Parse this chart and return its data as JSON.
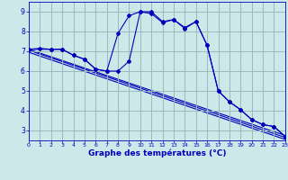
{
  "xlabel": "Graphe des températures (°C)",
  "bg_color": "#cce8e8",
  "line_color": "#0000bb",
  "grid_color": "#99bbbb",
  "xlim": [
    0,
    23
  ],
  "ylim": [
    2.5,
    9.5
  ],
  "yticks": [
    3,
    4,
    5,
    6,
    7,
    8,
    9
  ],
  "xticks": [
    0,
    1,
    2,
    3,
    4,
    5,
    6,
    7,
    8,
    9,
    10,
    11,
    12,
    13,
    14,
    15,
    16,
    17,
    18,
    19,
    20,
    21,
    22,
    23
  ],
  "line1_x": [
    0,
    1,
    2,
    3,
    4,
    5,
    6,
    7,
    8,
    9,
    10,
    11,
    12,
    13,
    14,
    15,
    16,
    17,
    18,
    19,
    20,
    21,
    22,
    23
  ],
  "line1_y": [
    7.1,
    7.15,
    7.1,
    7.1,
    6.8,
    6.6,
    6.1,
    6.0,
    7.9,
    8.8,
    9.0,
    8.9,
    8.45,
    8.6,
    8.2,
    8.5,
    7.3,
    5.0,
    4.45,
    4.05,
    3.55,
    3.3,
    3.2,
    2.7
  ],
  "line2_x": [
    0,
    2,
    3,
    4,
    5,
    6,
    7,
    8,
    9,
    10,
    11,
    12,
    13,
    14,
    15,
    16,
    17,
    18,
    19,
    20,
    21,
    22,
    23
  ],
  "line2_y": [
    7.1,
    7.1,
    7.1,
    6.8,
    6.6,
    6.1,
    6.0,
    6.0,
    6.5,
    9.0,
    9.0,
    8.5,
    8.6,
    8.15,
    8.5,
    7.3,
    5.0,
    4.45,
    4.05,
    3.55,
    3.3,
    3.2,
    2.7
  ],
  "line3_x": [
    0,
    23
  ],
  "line3_y": [
    7.1,
    2.75
  ],
  "line4_x": [
    0,
    23
  ],
  "line4_y": [
    7.05,
    2.65
  ],
  "line5_x": [
    0,
    23
  ],
  "line5_y": [
    6.95,
    2.55
  ]
}
